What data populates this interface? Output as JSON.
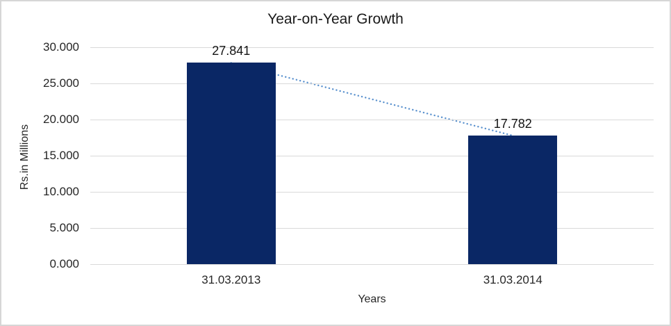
{
  "chart_data": {
    "type": "bar",
    "title": "Year-on-Year Growth",
    "xlabel": "Years",
    "ylabel": "Rs.in Millions",
    "categories": [
      "31.03.2013",
      "31.03.2014"
    ],
    "values": [
      27841,
      17782
    ],
    "data_labels": [
      "27.841",
      "17.782"
    ],
    "ylim": [
      0,
      30000
    ],
    "ytick_step": 5000,
    "ytick_labels": [
      "0.000",
      "5.000",
      "10.000",
      "15.000",
      "20.000",
      "25.000",
      "30.000"
    ],
    "grid": true,
    "legend": "none",
    "trendline": {
      "style": "dotted",
      "connects": [
        "31.03.2013",
        "31.03.2014"
      ]
    },
    "colors": {
      "bar": "#0a2765",
      "trendline": "#5b92ce",
      "gridline": "#d9d9d9",
      "axis_text": "#262626",
      "label_text": "#141414",
      "border": "#d6d6d6",
      "background": "#ffffff"
    }
  }
}
